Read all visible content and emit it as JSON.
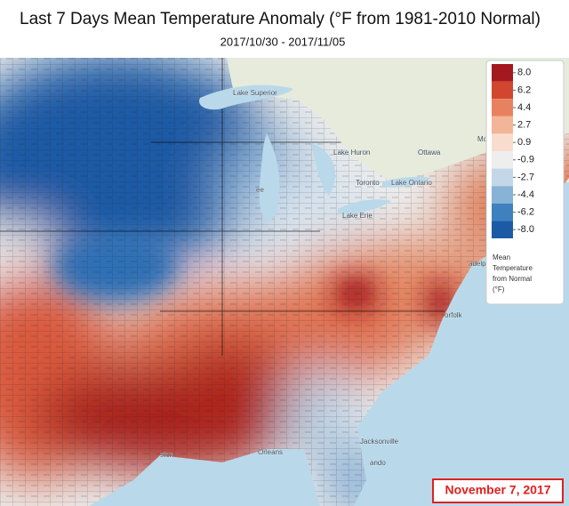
{
  "title": "Last 7 Days Mean Temperature Anomaly (°F from 1981-2010 Normal)",
  "subtitle": "2017/10/30 - 2017/11/05",
  "legend": {
    "ticks": [
      {
        "value": 8,
        "label": "8.0"
      },
      6.2,
      4.4,
      2.7,
      0.9,
      -0.9,
      -2.7,
      -4.4,
      -6.2,
      {
        "value": -8,
        "label": "-8.0"
      }
    ],
    "colors": [
      "#a3191f",
      "#d2452f",
      "#e8825e",
      "#f3b597",
      "#f8ddcf",
      "#eeeeee",
      "#c3d7e8",
      "#88b3d6",
      "#3f80bf",
      "#1d5aa5"
    ],
    "title": [
      "Mean",
      "Temperature",
      "from Normal",
      "(°F)"
    ]
  },
  "places": [
    "Lake Superior",
    "Lake Huron",
    "Ottawa",
    "Mo",
    "Toronto",
    "Lake Ontario",
    "Lake Erie",
    "adelp",
    "orfolk",
    "Jacksonville",
    "Orleans",
    "ston",
    "ando",
    "ee"
  ],
  "date": "November 7, 2017"
}
